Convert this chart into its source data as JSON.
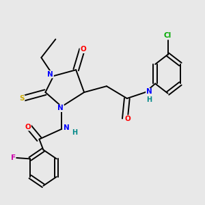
{
  "background_color": "#e8e8e8",
  "bond_color": "#000000",
  "atom_colors": {
    "N": "#0000ff",
    "O": "#ff0000",
    "S": "#ccaa00",
    "F": "#cc00aa",
    "Cl": "#00aa00",
    "C": "#000000",
    "H": "#008888"
  },
  "figsize": [
    3.0,
    3.0
  ],
  "dpi": 100,
  "lw": 1.4,
  "fs": 7.0
}
